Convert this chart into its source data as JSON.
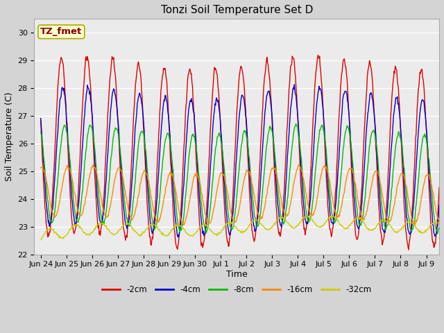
{
  "title": "Tonzi Soil Temperature Set D",
  "xlabel": "Time",
  "ylabel": "Soil Temperature (C)",
  "annotation": "TZ_fmet",
  "ylim": [
    22.0,
    30.5
  ],
  "yticks": [
    22.0,
    23.0,
    24.0,
    25.0,
    26.0,
    27.0,
    28.0,
    29.0,
    30.0
  ],
  "xtick_labels": [
    "Jun 24",
    "Jun 25",
    "Jun 26",
    "Jun 27",
    "Jun 28",
    "Jun 29",
    "Jun 30",
    "Jul 1",
    "Jul 2",
    "Jul 3",
    "Jul 4",
    "Jul 5",
    "Jul 6",
    "Jul 7",
    "Jul 8",
    "Jul 9"
  ],
  "xtick_positions": [
    0,
    1,
    2,
    3,
    4,
    5,
    6,
    7,
    8,
    9,
    10,
    11,
    12,
    13,
    14,
    15
  ],
  "colors": {
    "-2cm": "#dd0000",
    "-4cm": "#0000cc",
    "-8cm": "#00bb00",
    "-16cm": "#ff8800",
    "-32cm": "#cccc00"
  },
  "line_width": 1.0,
  "fig_bg": "#d4d4d4",
  "plot_bg": "#ebebeb",
  "annotation_bg": "#ffffcc",
  "annotation_border": "#aaaa00",
  "title_fontsize": 11,
  "axis_label_fontsize": 9,
  "tick_fontsize": 8,
  "legend_fontsize": 8.5
}
